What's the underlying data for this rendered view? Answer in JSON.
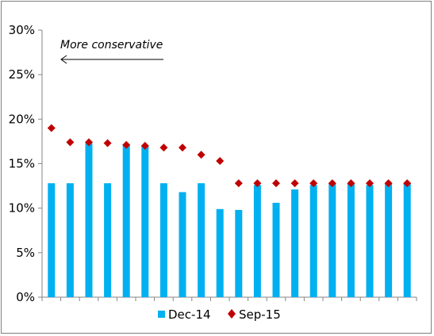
{
  "chart_data": {
    "type": "bar",
    "title": "",
    "xlabel": "",
    "ylabel": "",
    "ylim": [
      0,
      30
    ],
    "yticks": [
      "0%",
      "5%",
      "10%",
      "15%",
      "20%",
      "25%",
      "30%"
    ],
    "grid": false,
    "legend_position": "bottom",
    "annotation": "More conservative",
    "series": [
      {
        "name": "Dec-14",
        "type": "bar",
        "color": "#00b0f0",
        "values": [
          12.8,
          12.8,
          17.3,
          12.8,
          17.2,
          17.1,
          12.8,
          11.8,
          12.8,
          9.9,
          9.8,
          12.6,
          10.6,
          12.1,
          12.6,
          12.8,
          12.8,
          12.6,
          12.8,
          12.8
        ]
      },
      {
        "name": "Sep-15",
        "type": "scatter",
        "marker": "diamond",
        "color": "#c00000",
        "values": [
          19.0,
          17.4,
          17.4,
          17.3,
          17.1,
          17.0,
          16.8,
          16.8,
          16.0,
          15.3,
          12.8,
          12.8,
          12.8,
          12.8,
          12.8,
          12.8,
          12.8,
          12.8,
          12.8,
          12.8
        ]
      }
    ]
  }
}
